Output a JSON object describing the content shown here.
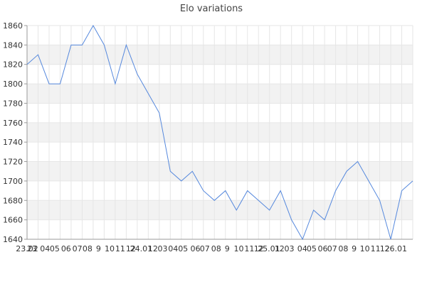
{
  "chart_data": {
    "type": "line",
    "title": "Elo variations",
    "xlabel": "",
    "ylabel": "",
    "ylim": [
      1640,
      1860
    ],
    "y_ticks": [
      1640,
      1660,
      1680,
      1700,
      1720,
      1740,
      1760,
      1780,
      1800,
      1820,
      1840,
      1860
    ],
    "grid": true,
    "x_tick_labels": [
      "23.02",
      "23",
      "04",
      "05",
      "06",
      "07",
      "08",
      "9",
      "10",
      "11",
      "12",
      "24.01",
      "12",
      "03",
      "04",
      "05",
      "06",
      "07",
      "08",
      "9",
      "10",
      "11",
      "12",
      "25.01",
      "12",
      "03",
      "04",
      "05",
      "06",
      "07",
      "08",
      "9",
      "10",
      "11",
      "12",
      "26.01"
    ],
    "x_positions": [
      0,
      0.91,
      3.26,
      5.02,
      7.08,
      9.12,
      10.96,
      12.96,
      14.98,
      16.91,
      18.84,
      20.71,
      22.85,
      24.6,
      26.51,
      28.31,
      30.55,
      32.25,
      34.33,
      36.33,
      38.42,
      40.35,
      42.07,
      43.89,
      45.82,
      47.6,
      49.95,
      51.65,
      53.67,
      55.38,
      57.39,
      59.36,
      61.3,
      63.24,
      64.93,
      66.93
    ],
    "x_grid_count": 35,
    "series": [
      {
        "color": "#5588dd",
        "x": [
          0,
          2,
          4,
          6,
          8,
          10,
          12,
          14,
          16,
          18,
          20,
          22,
          24,
          26,
          28,
          30,
          32,
          34,
          36,
          38,
          40,
          42,
          44,
          46,
          48,
          50,
          52,
          54,
          56,
          58,
          60,
          62,
          64,
          66,
          68,
          70
        ],
        "values": [
          1820,
          1830,
          1800,
          1800,
          1840,
          1840,
          1860,
          1840,
          1800,
          1840,
          1810,
          1790,
          1770,
          1710,
          1700,
          1710,
          1690,
          1680,
          1690,
          1670,
          1690,
          1680,
          1670,
          1690,
          1660,
          1640,
          1670,
          1660,
          1690,
          1710,
          1720,
          1700,
          1680,
          1640,
          1690,
          1700
        ]
      }
    ]
  }
}
